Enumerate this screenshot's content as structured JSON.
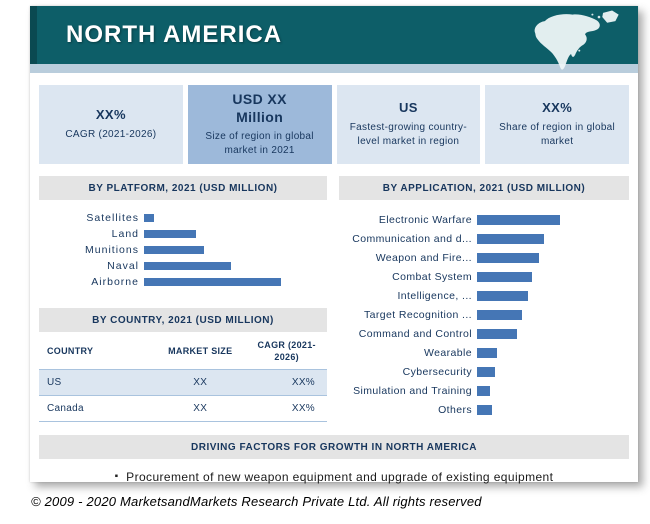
{
  "colors": {
    "header_bg": "#0d5e68",
    "header_band": "#b9cddc",
    "bar_color": "#4576b5",
    "stat_light_bg": "#dce6f1",
    "stat_dark_bg": "#9db9da",
    "section_header_bg": "#e4e4e4",
    "text_navy": "#17365d",
    "table_row_alt_bg": "#dce6f1",
    "table_border": "#a9c3de"
  },
  "header": {
    "title": "NORTH AMERICA",
    "map_icon": "north-america-map"
  },
  "stats": [
    {
      "value": "XX%",
      "label": "CAGR (2021-2026)"
    },
    {
      "value": "USD XX Million",
      "label": "Size of region in global market in 2021"
    },
    {
      "value": "US",
      "label": "Fastest-growing country-level market in region"
    },
    {
      "value": "XX%",
      "label": "Share of region in global market"
    }
  ],
  "sections": {
    "platform": {
      "title": "BY PLATFORM, 2021 (USD MILLION)"
    },
    "application": {
      "title": "BY APPLICATION,  2021 (USD MILLION)"
    },
    "country": {
      "title": "BY COUNTRY, 2021 (USD MILLION)"
    },
    "driving": {
      "title": "DRIVING FACTORS FOR GROWTH IN NORTH AMERICA"
    }
  },
  "country_table": {
    "headers": [
      "COUNTRY",
      "MARKET SIZE",
      "CAGR (2021-2026)"
    ],
    "rows": [
      [
        "US",
        "XX",
        "XX%"
      ],
      [
        "Canada",
        "XX",
        "XX%"
      ]
    ]
  },
  "driving_bullets": [
    "Procurement of new weapon equipment and upgrade of existing equipment"
  ],
  "footer": "© 2009 - 2020 MarketsandMarkets Research Private Ltd. All rights reserved",
  "chart_data": [
    {
      "type": "bar",
      "orientation": "horizontal",
      "title": "BY PLATFORM, 2021 (USD MILLION)",
      "categories": [
        "Satellites",
        "Land",
        "Munitions",
        "Naval",
        "Airborne"
      ],
      "values": [
        10,
        52,
        60,
        87,
        137
      ],
      "units": "relative bar lengths in px; actual values masked as XX in source",
      "bar_color": "#4576b5",
      "legend": false,
      "grid": false
    },
    {
      "type": "bar",
      "orientation": "horizontal",
      "title": "BY APPLICATION, 2021 (USD MILLION)",
      "categories": [
        "Electronic Warfare",
        "Communication and d...",
        "Weapon and Fire...",
        "Combat System",
        "Intelligence, ...",
        "Target Recognition ...",
        "Command and Control",
        "Wearable",
        "Cybersecurity",
        "Simulation and Training",
        "Others"
      ],
      "values": [
        83,
        67,
        62,
        55,
        51,
        45,
        40,
        20,
        18,
        13,
        15
      ],
      "units": "relative bar lengths in px; actual values masked as XX in source",
      "bar_color": "#4576b5",
      "legend": false,
      "grid": false
    }
  ]
}
